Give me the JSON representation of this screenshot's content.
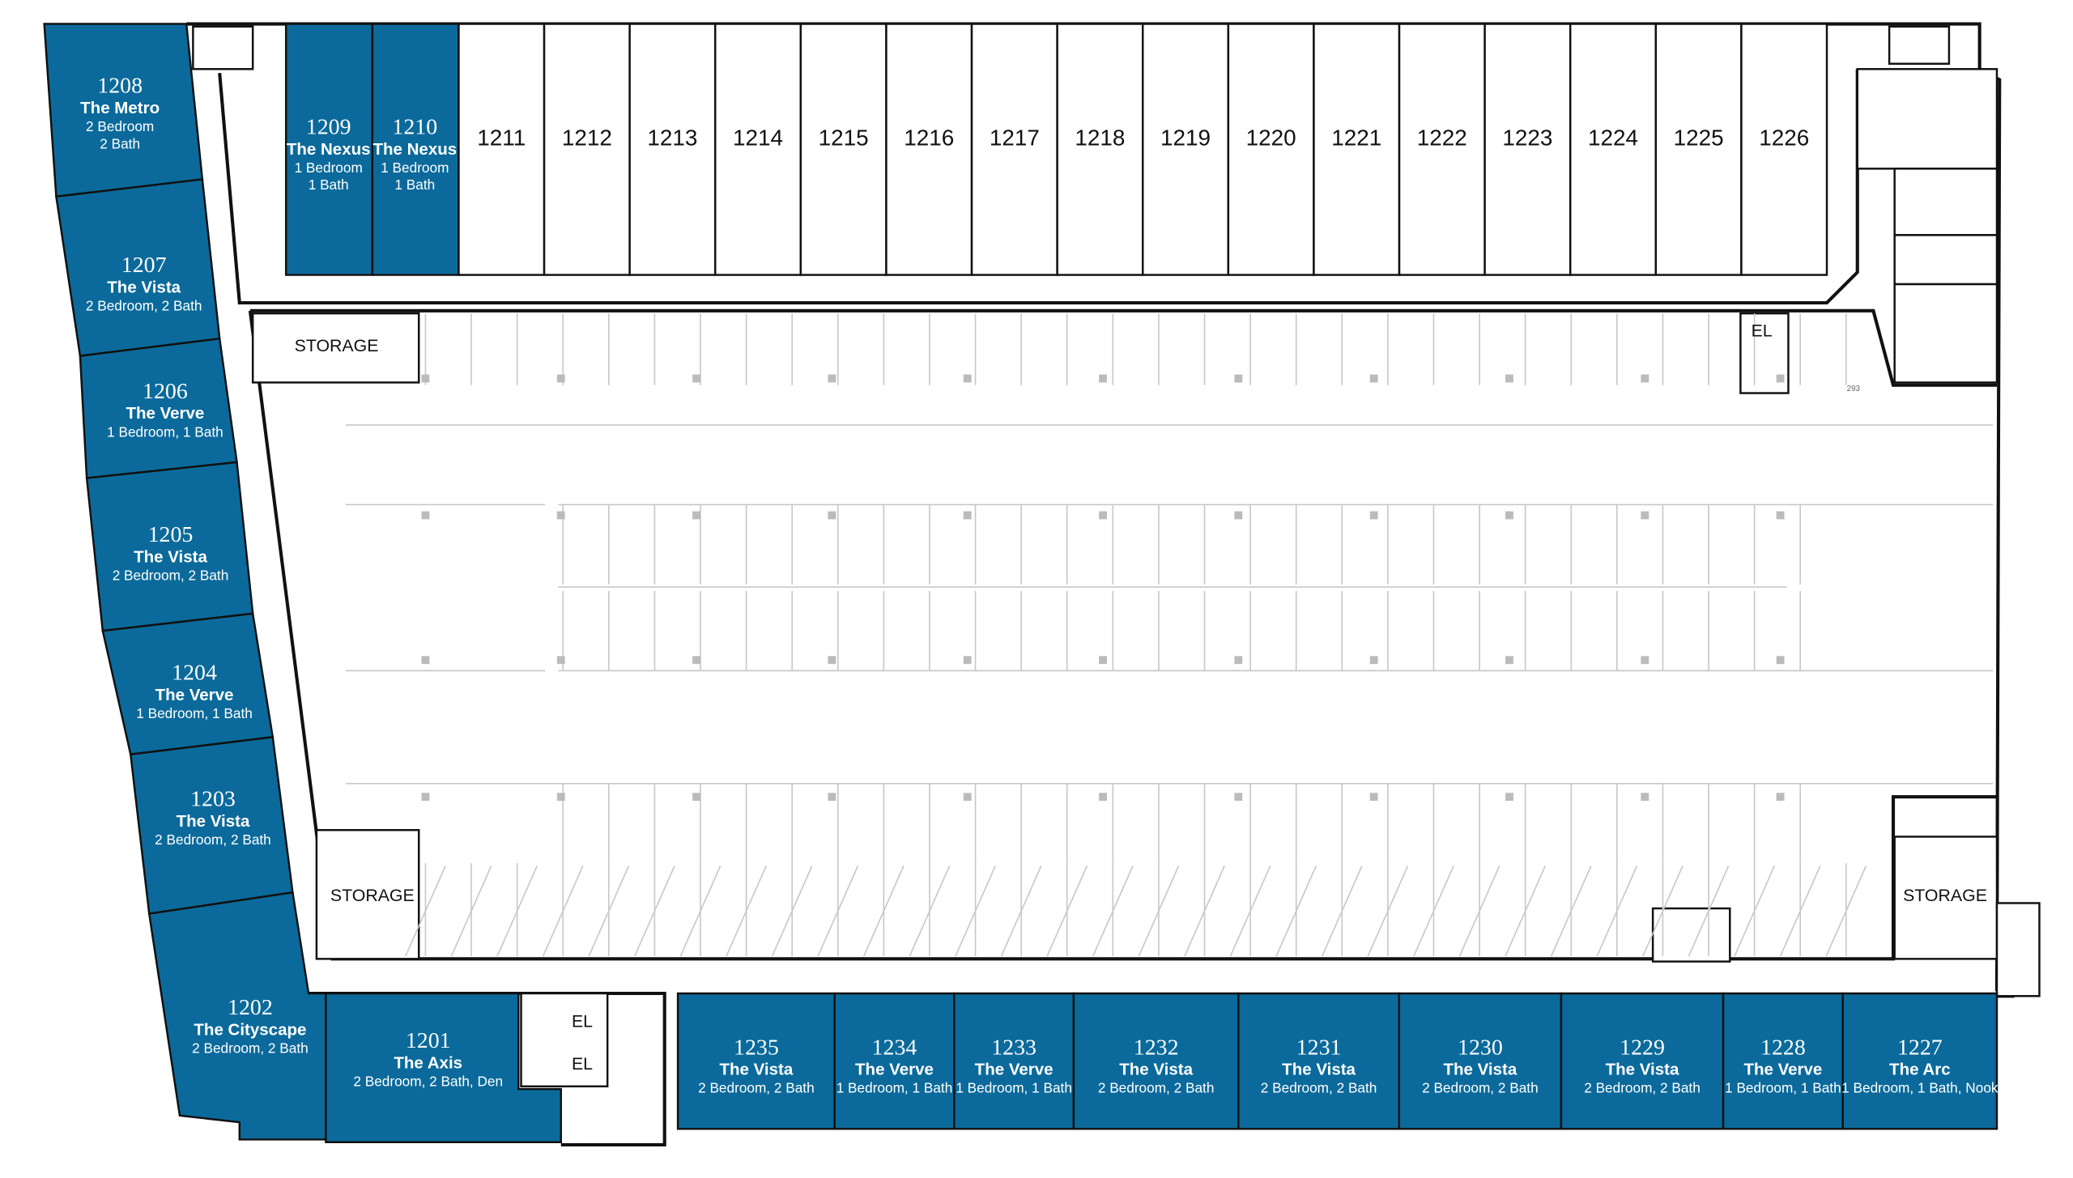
{
  "units": [
    {
      "number": "1208",
      "name": "The Metro",
      "details": [
        "2 Bedroom",
        "2 Bath"
      ]
    },
    {
      "number": "1207",
      "name": "The Vista",
      "details": [
        "2 Bedroom, 2 Bath"
      ]
    },
    {
      "number": "1206",
      "name": "The Verve",
      "details": [
        "1 Bedroom, 1 Bath"
      ]
    },
    {
      "number": "1205",
      "name": "The Vista",
      "details": [
        "2 Bedroom, 2 Bath"
      ]
    },
    {
      "number": "1204",
      "name": "The Verve",
      "details": [
        "1 Bedroom, 1 Bath"
      ]
    },
    {
      "number": "1203",
      "name": "The Vista",
      "details": [
        "2 Bedroom, 2 Bath"
      ]
    },
    {
      "number": "1202",
      "name": "The Cityscape",
      "details": [
        "2 Bedroom, 2 Bath"
      ]
    },
    {
      "number": "1201",
      "name": "The Axis",
      "details": [
        "2 Bedroom, 2 Bath, Den"
      ]
    },
    {
      "number": "1209",
      "name": "The Nexus",
      "details": [
        "1 Bedroom",
        "1 Bath"
      ]
    },
    {
      "number": "1210",
      "name": "The Nexus",
      "details": [
        "1 Bedroom",
        "1 Bath"
      ]
    },
    {
      "number": "1235",
      "name": "The Vista",
      "details": [
        "2 Bedroom, 2 Bath"
      ]
    },
    {
      "number": "1234",
      "name": "The Verve",
      "details": [
        "1 Bedroom, 1 Bath"
      ]
    },
    {
      "number": "1233",
      "name": "The Verve",
      "details": [
        "1 Bedroom, 1 Bath"
      ]
    },
    {
      "number": "1232",
      "name": "The Vista",
      "details": [
        "2 Bedroom, 2 Bath"
      ]
    },
    {
      "number": "1231",
      "name": "The Vista",
      "details": [
        "2 Bedroom, 2 Bath"
      ]
    },
    {
      "number": "1230",
      "name": "The Vista",
      "details": [
        "2 Bedroom, 2 Bath"
      ]
    },
    {
      "number": "1229",
      "name": "The Vista",
      "details": [
        "2 Bedroom, 2 Bath"
      ]
    },
    {
      "number": "1228",
      "name": "The Verve",
      "details": [
        "1 Bedroom, 1 Bath"
      ]
    },
    {
      "number": "1227",
      "name": "The Arc",
      "details": [
        "1 Bedroom, 1 Bath, Nook"
      ]
    }
  ],
  "other_units": [
    "1211",
    "1212",
    "1213",
    "1214",
    "1215",
    "1216",
    "1217",
    "1218",
    "1219",
    "1220",
    "1221",
    "1222",
    "1223",
    "1224",
    "1225",
    "1226"
  ],
  "storage": [
    "STORAGE",
    "STORAGE",
    "STORAGE"
  ],
  "elevators": [
    "EL",
    "EL",
    "EL"
  ],
  "spot_label": "293"
}
